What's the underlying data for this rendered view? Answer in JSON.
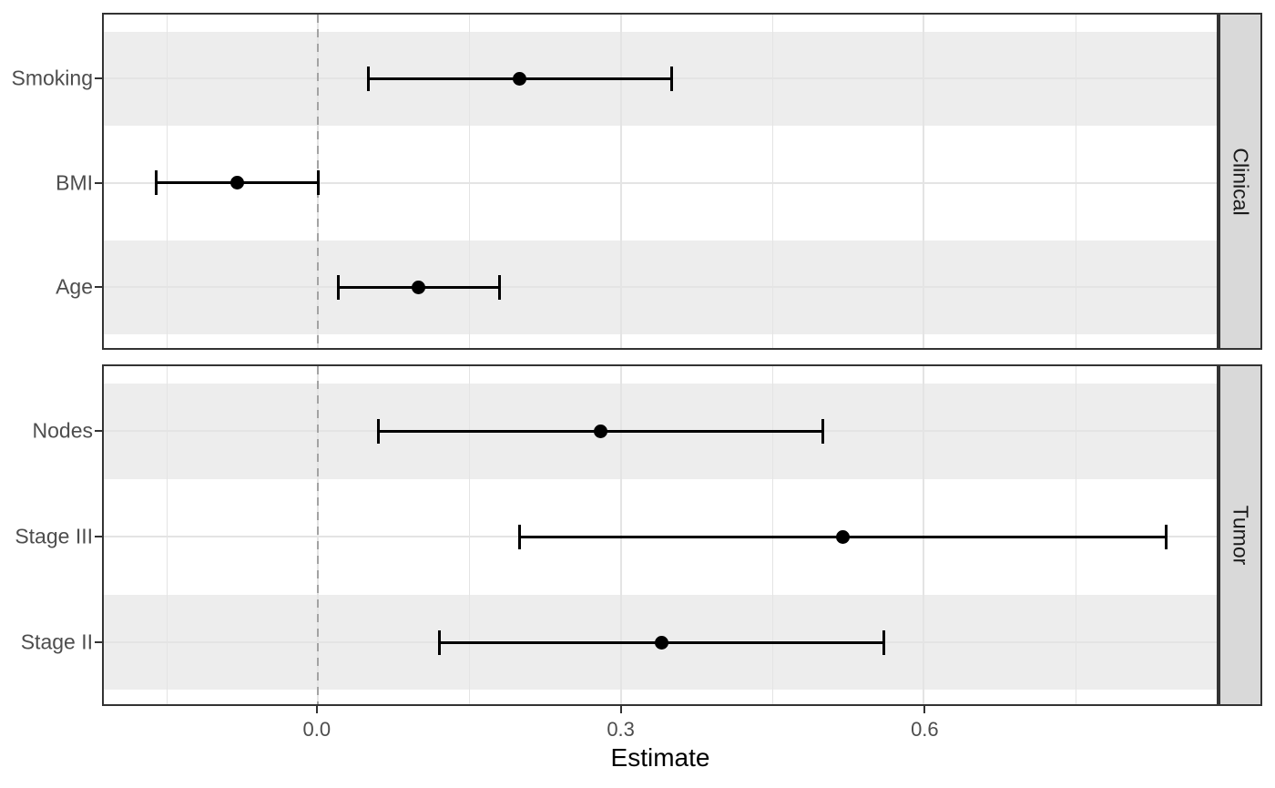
{
  "chart_data": {
    "type": "scatter",
    "subtype": "forest-plot-with-error-bars",
    "title": "",
    "xlabel": "Estimate",
    "xlim": [
      -0.212,
      0.89
    ],
    "x_ticks": [
      0.0,
      0.3,
      0.6
    ],
    "x_tick_labels": [
      "0.0",
      "0.3",
      "0.6"
    ],
    "x_minor_ticks": [
      -0.15,
      0.15,
      0.45,
      0.75
    ],
    "reference_line": 0.0,
    "grid": "on",
    "legend": "none",
    "facets": [
      {
        "label": "Clinical",
        "rows": [
          {
            "label": "Smoking",
            "estimate": 0.2,
            "ci_low": 0.05,
            "ci_high": 0.35
          },
          {
            "label": "BMI",
            "estimate": -0.08,
            "ci_low": -0.16,
            "ci_high": 0.0
          },
          {
            "label": "Age",
            "estimate": 0.1,
            "ci_low": 0.02,
            "ci_high": 0.18
          }
        ]
      },
      {
        "label": "Tumor",
        "rows": [
          {
            "label": "Nodes",
            "estimate": 0.28,
            "ci_low": 0.06,
            "ci_high": 0.5
          },
          {
            "label": "Stage III",
            "estimate": 0.52,
            "ci_low": 0.2,
            "ci_high": 0.84
          },
          {
            "label": "Stage II",
            "estimate": 0.34,
            "ci_low": 0.12,
            "ci_high": 0.56
          }
        ]
      }
    ]
  },
  "colors": {
    "point": "#000000",
    "error_bar": "#000000",
    "stripe": "#ededed",
    "strip_background": "#d9d9d9",
    "strip_text": "#1a1a1a",
    "panel_border": "#333333",
    "axis_text": "#4d4d4d",
    "gridline": "#e4e4e4",
    "reference_line": "#a3a3a3"
  }
}
